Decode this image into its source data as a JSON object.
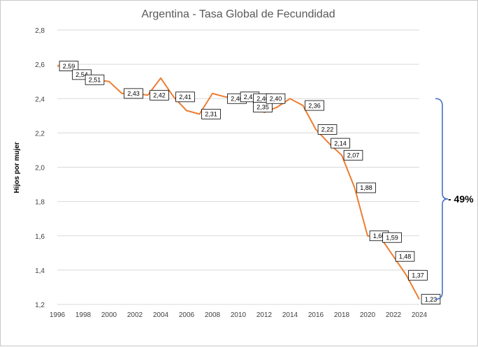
{
  "chart_data": {
    "type": "line",
    "title": "Argentina - Tasa Global de Fecundidad",
    "xlabel": "",
    "ylabel": "Hijos por mujer",
    "x_ticks": [
      "1996",
      "1998",
      "2000",
      "2002",
      "2004",
      "2006",
      "2008",
      "2010",
      "2012",
      "2014",
      "2016",
      "2018",
      "2020",
      "2022",
      "2024"
    ],
    "y_ticks": [
      "1,2",
      "1,4",
      "1,6",
      "1,8",
      "2,0",
      "2,2",
      "2,4",
      "2,6",
      "2,8"
    ],
    "ylim": [
      1.2,
      2.8
    ],
    "xlim": [
      1996,
      2024
    ],
    "grid": true,
    "series": [
      {
        "name": "Tasa Global de Fecundidad",
        "color": "#ed7d31",
        "x": [
          1996,
          1997,
          1998,
          1999,
          2000,
          2001,
          2002,
          2003,
          2004,
          2005,
          2006,
          2007,
          2008,
          2009,
          2010,
          2011,
          2012,
          2013,
          2014,
          2015,
          2016,
          2017,
          2018,
          2019,
          2020,
          2021,
          2022,
          2023,
          2024
        ],
        "y": [
          2.59,
          2.6,
          2.54,
          2.51,
          2.5,
          2.43,
          2.43,
          2.42,
          2.52,
          2.41,
          2.33,
          2.31,
          2.43,
          2.41,
          2.4,
          2.41,
          2.32,
          2.35,
          2.4,
          2.36,
          2.22,
          2.14,
          2.07,
          1.88,
          1.6,
          1.59,
          1.48,
          1.37,
          1.23
        ]
      }
    ],
    "data_labels": [
      {
        "x": 1997,
        "y": 2.59,
        "text": "2,59"
      },
      {
        "x": 1998,
        "y": 2.54,
        "text": "2,54"
      },
      {
        "x": 1999,
        "y": 2.51,
        "text": "2,51"
      },
      {
        "x": 2002,
        "y": 2.43,
        "text": "2,43"
      },
      {
        "x": 2004,
        "y": 2.42,
        "text": "2,42"
      },
      {
        "x": 2006,
        "y": 2.41,
        "text": "2,41"
      },
      {
        "x": 2008,
        "y": 2.31,
        "text": "2,31"
      },
      {
        "x": 2010,
        "y": 2.4,
        "text": "2,40"
      },
      {
        "x": 2011,
        "y": 2.41,
        "text": "2,41"
      },
      {
        "x": 2012,
        "y": 2.4,
        "text": "2,40"
      },
      {
        "x": 2012,
        "y": 2.35,
        "text": "2,35"
      },
      {
        "x": 2013,
        "y": 2.4,
        "text": "2,40"
      },
      {
        "x": 2016,
        "y": 2.36,
        "text": "2,36"
      },
      {
        "x": 2017,
        "y": 2.22,
        "text": "2,22"
      },
      {
        "x": 2018,
        "y": 2.14,
        "text": "2,14"
      },
      {
        "x": 2019,
        "y": 2.07,
        "text": "2,07"
      },
      {
        "x": 2020,
        "y": 1.88,
        "text": "1,88"
      },
      {
        "x": 2021,
        "y": 1.6,
        "text": "1,60"
      },
      {
        "x": 2022,
        "y": 1.59,
        "text": "1,59"
      },
      {
        "x": 2023,
        "y": 1.48,
        "text": "1,48"
      },
      {
        "x": 2024,
        "y": 1.37,
        "text": "1,37"
      },
      {
        "x": 2025,
        "y": 1.23,
        "text": "1,23"
      }
    ],
    "annotation": {
      "text": "- 49%",
      "color": "#4472c4",
      "bracket_from": 2.4,
      "bracket_to": 1.23
    }
  }
}
